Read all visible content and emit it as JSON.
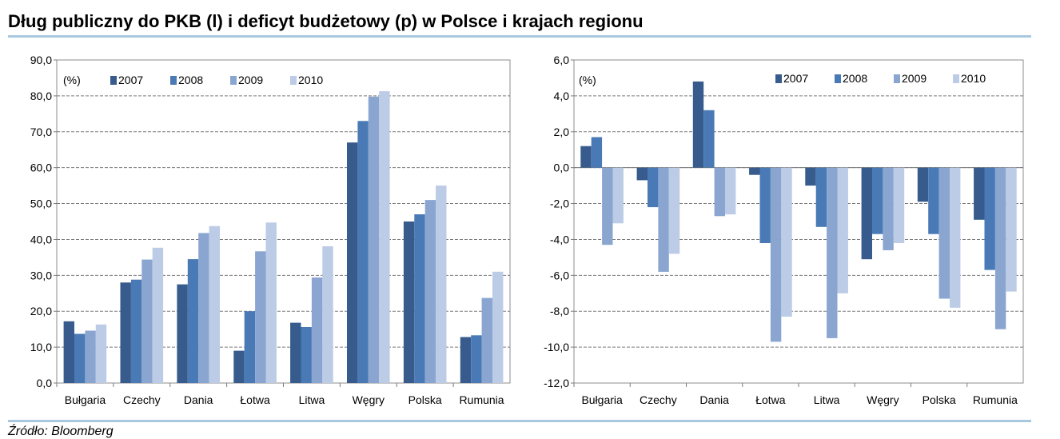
{
  "title": "Dług publiczny do PKB (l) i deficyt budżetowy (p) w Polsce i krajach regionu",
  "source": "Źródło: Bloomberg",
  "colors": [
    "#375b8c",
    "#4a7ab5",
    "#8aa6d0",
    "#bccbe6"
  ],
  "chart_data": [
    {
      "type": "bar",
      "title": "Dług publiczny do PKB",
      "unit_label": "(%)",
      "categories": [
        "Bułgaria",
        "Czechy",
        "Dania",
        "Łotwa",
        "Litwa",
        "Węgry",
        "Polska",
        "Rumunia"
      ],
      "series": [
        {
          "name": "2007",
          "values": [
            17.2,
            28.0,
            27.5,
            9.0,
            16.8,
            67.0,
            45.0,
            12.8
          ]
        },
        {
          "name": "2008",
          "values": [
            13.7,
            28.8,
            34.5,
            20.0,
            15.6,
            73.0,
            47.0,
            13.3
          ]
        },
        {
          "name": "2009",
          "values": [
            14.6,
            34.4,
            41.8,
            36.7,
            29.4,
            79.8,
            51.0,
            23.7
          ]
        },
        {
          "name": "2010",
          "values": [
            16.3,
            37.7,
            43.7,
            44.7,
            38.1,
            81.3,
            55.0,
            31.0
          ]
        }
      ],
      "ylim": [
        0,
        90
      ],
      "yticks": [
        "0,0",
        "10,0",
        "20,0",
        "30,0",
        "40,0",
        "50,0",
        "60,0",
        "70,0",
        "80,0",
        "90,0"
      ],
      "grid": true,
      "legend": "top-left"
    },
    {
      "type": "bar",
      "title": "Deficyt budżetowy",
      "unit_label": "(%)",
      "categories": [
        "Bułgaria",
        "Czechy",
        "Dania",
        "Łotwa",
        "Litwa",
        "Węgry",
        "Polska",
        "Rumunia"
      ],
      "series": [
        {
          "name": "2007",
          "values": [
            1.2,
            -0.7,
            4.8,
            -0.4,
            -1.0,
            -5.1,
            -1.9,
            -2.9
          ]
        },
        {
          "name": "2008",
          "values": [
            1.7,
            -2.2,
            3.2,
            -4.2,
            -3.3,
            -3.7,
            -3.7,
            -5.7
          ]
        },
        {
          "name": "2009",
          "values": [
            -4.3,
            -5.8,
            -2.7,
            -9.7,
            -9.5,
            -4.6,
            -7.3,
            -9.0
          ]
        },
        {
          "name": "2010",
          "values": [
            -3.1,
            -4.8,
            -2.6,
            -8.3,
            -7.0,
            -4.2,
            -7.8,
            -6.9
          ]
        }
      ],
      "ylim": [
        -12,
        6
      ],
      "yticks": [
        "-12,0",
        "-10,0",
        "-8,0",
        "-6,0",
        "-4,0",
        "-2,0",
        "0,0",
        "2,0",
        "4,0",
        "6,0"
      ],
      "grid": true,
      "legend": "top-right"
    }
  ]
}
